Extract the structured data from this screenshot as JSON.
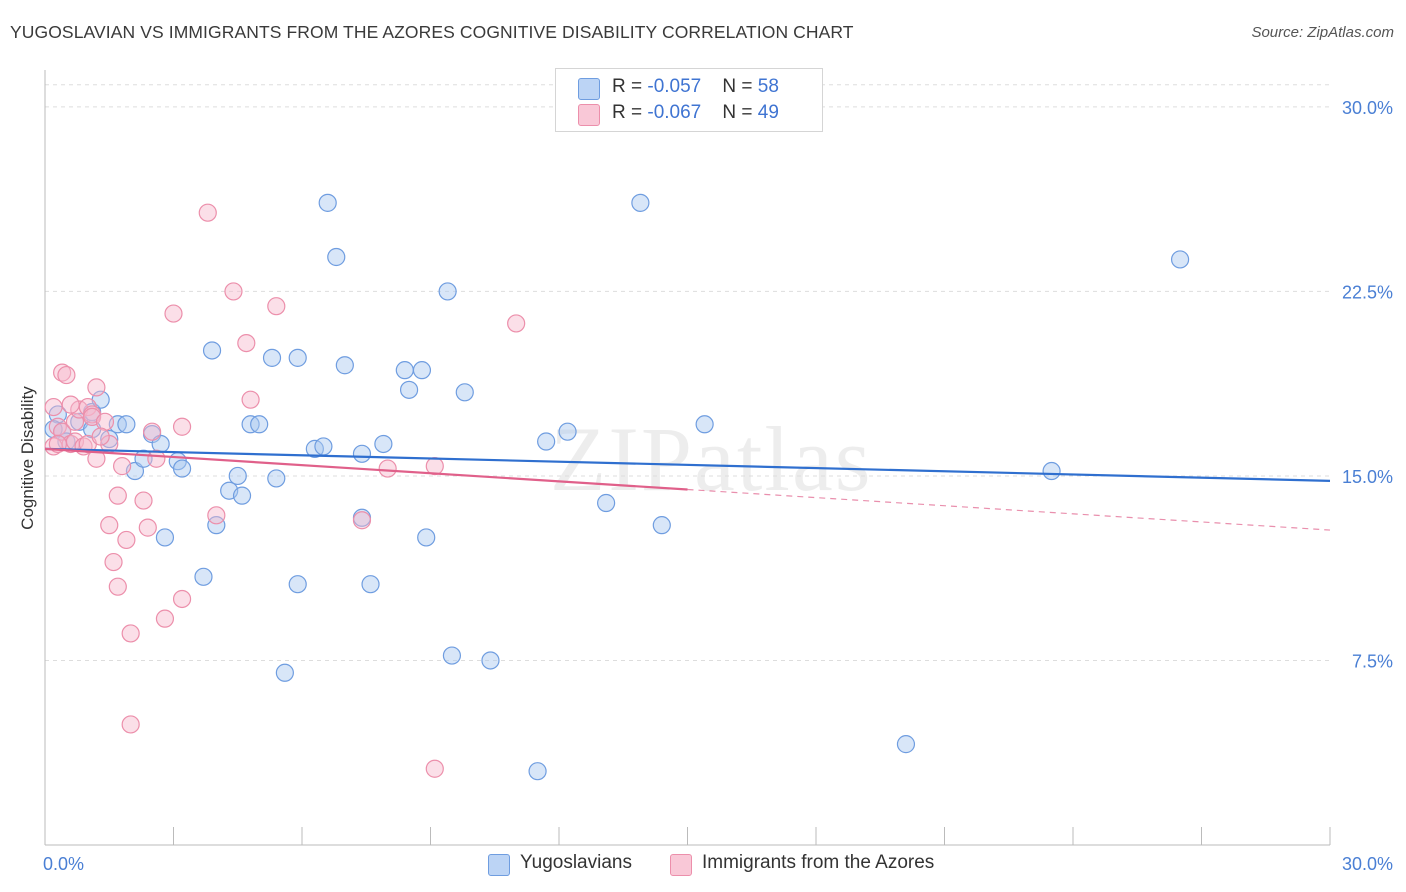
{
  "title": "YUGOSLAVIAN VS IMMIGRANTS FROM THE AZORES COGNITIVE DISABILITY CORRELATION CHART",
  "source": "Source: ZipAtlas.com",
  "watermark": "ZIPatlas",
  "legend": {
    "rows": [
      {
        "r_label": "R = ",
        "r_value": "-0.057",
        "n_label": "N = ",
        "n_value": "58"
      },
      {
        "r_label": "R = ",
        "r_value": "-0.067",
        "n_label": "N = ",
        "n_value": "49"
      }
    ]
  },
  "colors": {
    "blue_fill": "#a8c7f0",
    "blue_stroke": "#6f9de0",
    "blue_line": "#2f6fcf",
    "pink_fill": "#f7b8cb",
    "pink_stroke": "#ec8fab",
    "pink_line": "#e0608a",
    "axis_text": "#4a7fd4",
    "grid": "#dddddd"
  },
  "chart_data": {
    "type": "scatter",
    "title": "YUGOSLAVIAN VS IMMIGRANTS FROM THE AZORES COGNITIVE DISABILITY CORRELATION CHART",
    "xlabel": "",
    "ylabel": "Cognitive Disability",
    "xlim": [
      0,
      30
    ],
    "ylim": [
      0,
      31.5
    ],
    "x_tick_labels": [
      "0.0%",
      "30.0%"
    ],
    "y_ticks": [
      7.5,
      15.0,
      22.5,
      30.0
    ],
    "y_tick_labels": [
      "7.5%",
      "15.0%",
      "22.5%",
      "30.0%"
    ],
    "grid": "horizontal dashed",
    "legend_position": "top-center",
    "series": [
      {
        "name": "Yugoslavians",
        "color": "#a8c7f0",
        "trend": {
          "x": [
            0,
            30
          ],
          "y": [
            16.1,
            14.8
          ],
          "dashed_from": null
        },
        "points": [
          [
            0.3,
            17.5
          ],
          [
            0.4,
            16.8
          ],
          [
            0.5,
            16.4
          ],
          [
            0.8,
            17.2
          ],
          [
            1.1,
            17.6
          ],
          [
            1.1,
            16.9
          ],
          [
            1.3,
            18.1
          ],
          [
            1.5,
            16.5
          ],
          [
            1.7,
            17.1
          ],
          [
            1.9,
            17.1
          ],
          [
            2.1,
            15.2
          ],
          [
            2.3,
            15.7
          ],
          [
            2.5,
            16.7
          ],
          [
            2.7,
            16.3
          ],
          [
            2.8,
            12.5
          ],
          [
            3.1,
            15.6
          ],
          [
            3.2,
            15.3
          ],
          [
            3.7,
            10.9
          ],
          [
            3.9,
            20.1
          ],
          [
            4.0,
            13.0
          ],
          [
            4.3,
            14.4
          ],
          [
            4.5,
            15.0
          ],
          [
            4.6,
            14.2
          ],
          [
            4.8,
            17.1
          ],
          [
            5.0,
            17.1
          ],
          [
            5.3,
            19.8
          ],
          [
            5.4,
            14.9
          ],
          [
            5.6,
            7.0
          ],
          [
            5.9,
            10.6
          ],
          [
            5.9,
            19.8
          ],
          [
            6.3,
            16.1
          ],
          [
            6.5,
            16.2
          ],
          [
            6.6,
            26.1
          ],
          [
            6.8,
            23.9
          ],
          [
            7.0,
            19.5
          ],
          [
            7.4,
            15.9
          ],
          [
            7.4,
            13.3
          ],
          [
            7.6,
            10.6
          ],
          [
            7.9,
            16.3
          ],
          [
            8.4,
            19.3
          ],
          [
            8.5,
            18.5
          ],
          [
            8.8,
            19.3
          ],
          [
            8.9,
            12.5
          ],
          [
            9.4,
            22.5
          ],
          [
            9.5,
            7.7
          ],
          [
            9.8,
            18.4
          ],
          [
            10.4,
            7.5
          ],
          [
            11.5,
            3.0
          ],
          [
            11.7,
            16.4
          ],
          [
            12.2,
            16.8
          ],
          [
            13.1,
            13.9
          ],
          [
            13.9,
            26.1
          ],
          [
            14.4,
            13.0
          ],
          [
            15.4,
            17.1
          ],
          [
            20.1,
            4.1
          ],
          [
            23.5,
            15.2
          ],
          [
            26.5,
            23.8
          ],
          [
            0.2,
            16.9
          ]
        ]
      },
      {
        "name": "Immigrants from the Azores",
        "color": "#f7b8cb",
        "trend": {
          "x": [
            0,
            30
          ],
          "y": [
            16.1,
            12.8
          ],
          "dashed_from": 15
        },
        "points": [
          [
            0.2,
            17.8
          ],
          [
            0.2,
            16.2
          ],
          [
            0.3,
            17.0
          ],
          [
            0.4,
            16.8
          ],
          [
            0.4,
            19.2
          ],
          [
            0.5,
            19.1
          ],
          [
            0.6,
            16.3
          ],
          [
            0.7,
            16.4
          ],
          [
            0.7,
            17.2
          ],
          [
            0.8,
            17.7
          ],
          [
            0.9,
            16.2
          ],
          [
            1.0,
            17.8
          ],
          [
            1.0,
            16.3
          ],
          [
            1.1,
            17.5
          ],
          [
            1.1,
            17.4
          ],
          [
            1.2,
            18.6
          ],
          [
            1.2,
            15.7
          ],
          [
            1.4,
            17.2
          ],
          [
            1.5,
            16.3
          ],
          [
            1.5,
            13.0
          ],
          [
            1.6,
            11.5
          ],
          [
            1.7,
            10.5
          ],
          [
            1.7,
            14.2
          ],
          [
            1.8,
            15.4
          ],
          [
            1.9,
            12.4
          ],
          [
            2.0,
            8.6
          ],
          [
            2.0,
            4.9
          ],
          [
            2.3,
            14.0
          ],
          [
            2.4,
            12.9
          ],
          [
            2.5,
            16.8
          ],
          [
            2.6,
            15.7
          ],
          [
            2.8,
            9.2
          ],
          [
            3.0,
            21.6
          ],
          [
            3.2,
            17.0
          ],
          [
            3.2,
            10.0
          ],
          [
            3.8,
            25.7
          ],
          [
            4.0,
            13.4
          ],
          [
            4.4,
            22.5
          ],
          [
            4.7,
            20.4
          ],
          [
            4.8,
            18.1
          ],
          [
            5.4,
            21.9
          ],
          [
            7.4,
            13.2
          ],
          [
            8.0,
            15.3
          ],
          [
            9.1,
            15.4
          ],
          [
            9.1,
            3.1
          ],
          [
            11.0,
            21.2
          ],
          [
            0.3,
            16.3
          ],
          [
            0.6,
            17.9
          ],
          [
            1.3,
            16.6
          ]
        ]
      }
    ]
  },
  "bottom_legend": {
    "items": [
      {
        "label": "Yugoslavians"
      },
      {
        "label": "Immigrants from the Azores"
      }
    ]
  }
}
